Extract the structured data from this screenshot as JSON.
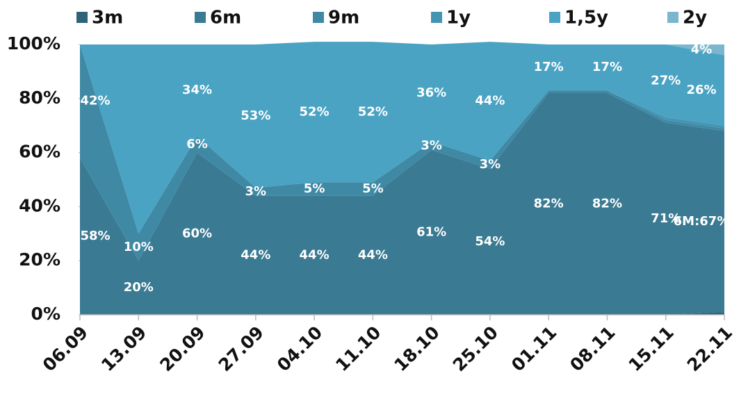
{
  "chart_data": {
    "type": "stacked-area",
    "categories": [
      "06.09",
      "13.09",
      "20.09",
      "27.09",
      "04.10",
      "11.10",
      "18.10",
      "25.10",
      "01.11",
      "08.11",
      "15.11",
      "22.11"
    ],
    "series": [
      {
        "name": "3m",
        "color": "#2d6478",
        "values": [
          0,
          0,
          0,
          0,
          0,
          0,
          0,
          0,
          0,
          0,
          0,
          1
        ],
        "value_labels": [
          null,
          null,
          null,
          null,
          null,
          null,
          null,
          null,
          null,
          null,
          null,
          null
        ]
      },
      {
        "name": "6m",
        "color": "#3a7a92",
        "values": [
          58,
          20,
          60,
          44,
          44,
          44,
          61,
          54,
          82,
          82,
          71,
          67
        ],
        "value_labels": [
          "58%",
          "20%",
          "60%",
          "44%",
          "44%",
          "44%",
          "61%",
          "54%",
          "82%",
          "82%",
          "71%",
          "6M:67%"
        ]
      },
      {
        "name": "9m",
        "color": "#3f89a5",
        "values": [
          42,
          10,
          6,
          3,
          5,
          5,
          3,
          3,
          1,
          1,
          1,
          1
        ],
        "value_labels": [
          "42%",
          "10%",
          "6%",
          "3%",
          "5%",
          "5%",
          "3%",
          "3%",
          null,
          null,
          null,
          null
        ]
      },
      {
        "name": "1y",
        "color": "#4494b3",
        "values": [
          0,
          0,
          0,
          0,
          0,
          0,
          0,
          0,
          0,
          0,
          1,
          1
        ],
        "value_labels": [
          null,
          null,
          null,
          null,
          null,
          null,
          null,
          null,
          null,
          null,
          null,
          null
        ]
      },
      {
        "name": "1,5y",
        "color": "#4aa3c3",
        "values": [
          0,
          70,
          34,
          53,
          52,
          52,
          36,
          44,
          17,
          17,
          27,
          26
        ],
        "value_labels": [
          null,
          null,
          "34%",
          "53%",
          "52%",
          "52%",
          "36%",
          "44%",
          "17%",
          "17%",
          "27%",
          "26%"
        ]
      },
      {
        "name": "2y",
        "color": "#7ab6ce",
        "values": [
          0,
          0,
          0,
          0,
          0,
          0,
          0,
          0,
          0,
          0,
          0,
          4
        ],
        "value_labels": [
          null,
          null,
          null,
          null,
          null,
          null,
          null,
          null,
          null,
          null,
          null,
          "4%"
        ]
      }
    ],
    "ylim": [
      0,
      100
    ],
    "yticks": [
      {
        "value": 0,
        "label": "0%"
      },
      {
        "value": 20,
        "label": "20%"
      },
      {
        "value": 40,
        "label": "40%"
      },
      {
        "value": 60,
        "label": "60%"
      },
      {
        "value": 80,
        "label": "80%"
      },
      {
        "value": 100,
        "label": "100%"
      }
    ],
    "legend": "top"
  }
}
